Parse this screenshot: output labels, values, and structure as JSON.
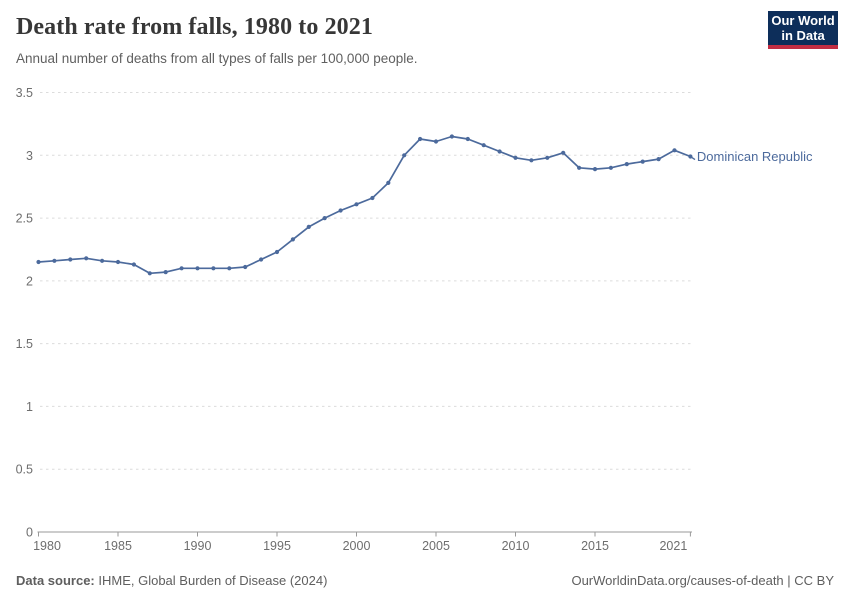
{
  "header": {
    "title": "Death rate from falls, 1980 to 2021",
    "subtitle": "Annual number of deaths from all types of falls per 100,000 people.",
    "logo": {
      "line1": "Our World",
      "line2": "in Data",
      "bg_color": "#0d2e5a",
      "accent_color": "#c22e43"
    }
  },
  "chart_data": {
    "type": "line",
    "title": "Death rate from falls, 1980 to 2021",
    "xlabel": "",
    "ylabel": "",
    "x": [
      1980,
      1981,
      1982,
      1983,
      1984,
      1985,
      1986,
      1987,
      1988,
      1989,
      1990,
      1991,
      1992,
      1993,
      1994,
      1995,
      1996,
      1997,
      1998,
      1999,
      2000,
      2001,
      2002,
      2003,
      2004,
      2005,
      2006,
      2007,
      2008,
      2009,
      2010,
      2011,
      2012,
      2013,
      2014,
      2015,
      2016,
      2017,
      2018,
      2019,
      2020,
      2021
    ],
    "series": [
      {
        "name": "Dominican Republic",
        "color": "#4C6A9C",
        "values": [
          2.15,
          2.16,
          2.17,
          2.18,
          2.16,
          2.15,
          2.13,
          2.06,
          2.07,
          2.1,
          2.1,
          2.1,
          2.1,
          2.11,
          2.17,
          2.23,
          2.33,
          2.43,
          2.5,
          2.56,
          2.61,
          2.66,
          2.78,
          3.0,
          3.13,
          3.11,
          3.15,
          3.13,
          3.08,
          3.03,
          2.98,
          2.96,
          2.98,
          3.02,
          2.9,
          2.89,
          2.9,
          2.93,
          2.95,
          2.97,
          3.04,
          2.99
        ]
      }
    ],
    "xticks": [
      "1980",
      "1985",
      "1990",
      "1995",
      "2000",
      "2005",
      "2010",
      "2015",
      "2021"
    ],
    "yticks": [
      "0",
      "0.5",
      "1",
      "1.5",
      "2",
      "2.5",
      "3",
      "3.5"
    ],
    "xlim": [
      1980,
      2021
    ],
    "ylim": [
      0,
      3.5
    ],
    "grid": "horizontal-dashed",
    "legend_position": "end-of-line-label"
  },
  "footer": {
    "source_label": "Data source:",
    "source_text": "IHME, Global Burden of Disease (2024)",
    "credit": "OurWorldinData.org/causes-of-death | CC BY"
  }
}
